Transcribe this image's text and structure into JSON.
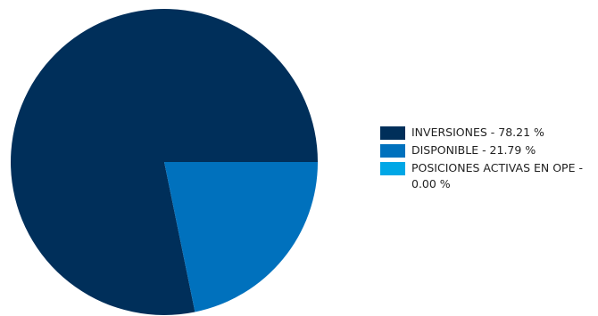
{
  "chart_data": {
    "type": "pie",
    "title": "",
    "slices": [
      {
        "label": "INVERSIONES",
        "value": 78.21,
        "color": "#002f5a",
        "legend_label": "INVERSIONES - 78.21 %"
      },
      {
        "label": "DISPONIBLE",
        "value": 21.79,
        "color": "#0071bd",
        "legend_label": "DISPONIBLE - 21.79 %"
      },
      {
        "label": "POSICIONES ACTIVAS EN OPE",
        "value": 0.0,
        "color": "#00a7e6",
        "legend_label": "POSICIONES ACTIVAS EN OPE - 0.00 %"
      }
    ],
    "legend_position": "right"
  }
}
